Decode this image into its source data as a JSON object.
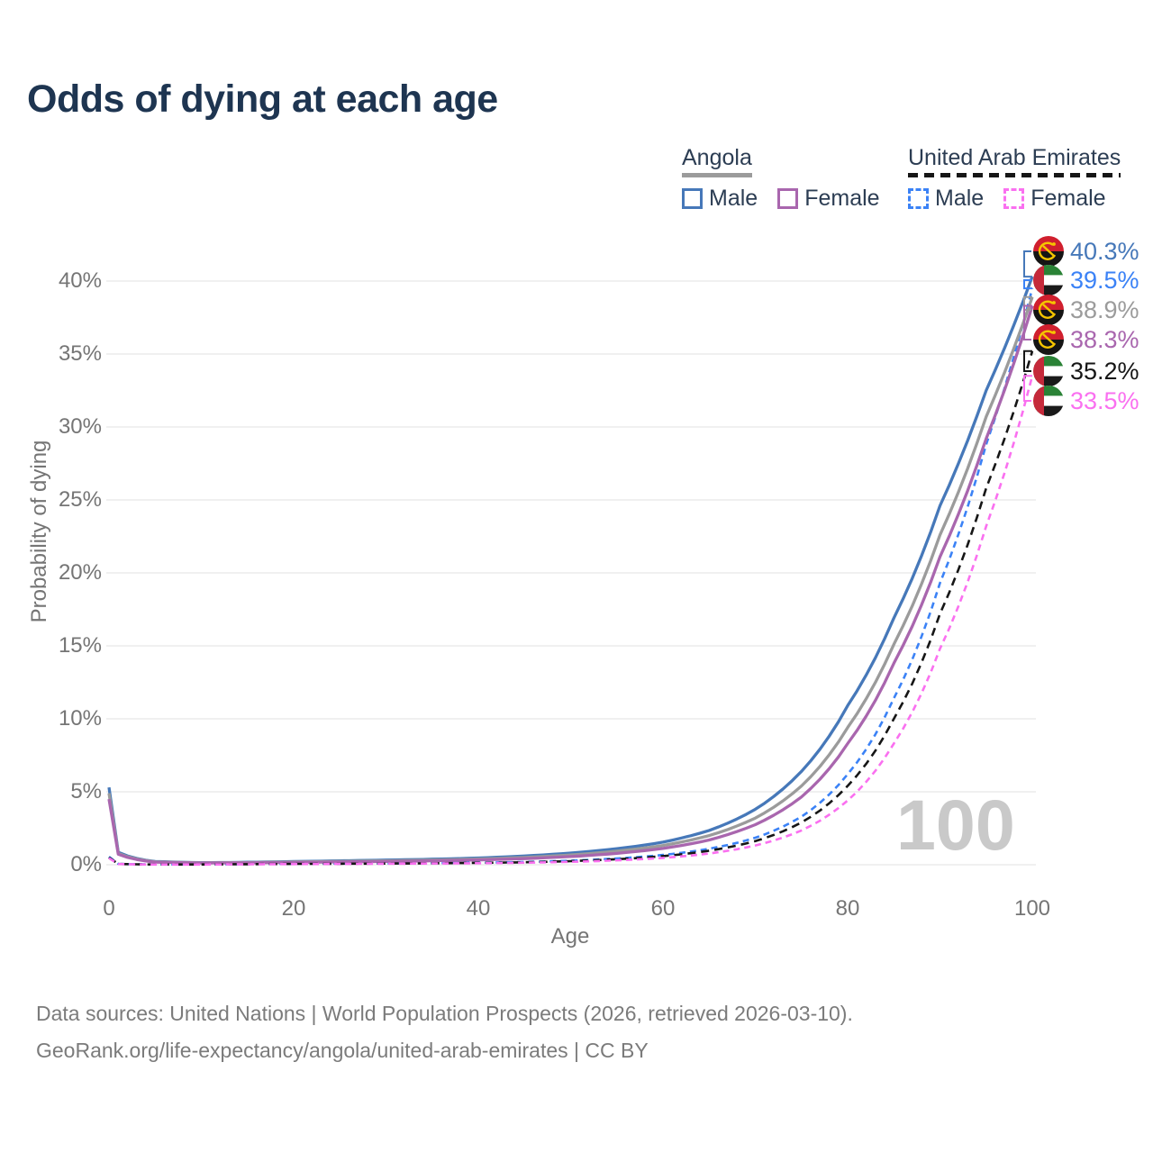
{
  "title": "Odds of dying at each age",
  "watermark": "100",
  "footer": {
    "line1": "Data sources: United Nations | World Population Prospects (2026, retrieved 2026-03-10).",
    "line2": "GeoRank.org/life-expectancy/angola/united-arab-emirates | CC BY"
  },
  "legend": {
    "groups": [
      {
        "country": "Angola",
        "underline_style": "solid",
        "underline_color": "#9b9b9b",
        "items": [
          {
            "label": "Male",
            "color": "#4678b9",
            "dashed": false
          },
          {
            "label": "Female",
            "color": "#a966ae",
            "dashed": false
          }
        ]
      },
      {
        "country": "United Arab Emirates",
        "underline_style": "dashed",
        "underline_color": "#161616",
        "items": [
          {
            "label": "Male",
            "color": "#3b82f6",
            "dashed": true
          },
          {
            "label": "Female",
            "color": "#fa70f0",
            "dashed": true
          }
        ]
      }
    ]
  },
  "chart_data": {
    "type": "line",
    "title": "Odds of dying at each age",
    "xlabel": "Age",
    "ylabel": "Probability of dying",
    "xlim": [
      0,
      100
    ],
    "ylim_percent": [
      0,
      43
    ],
    "x_ticks": [
      0,
      20,
      40,
      60,
      80,
      100
    ],
    "y_ticks_percent": [
      0,
      5,
      10,
      15,
      20,
      25,
      30,
      35,
      40
    ],
    "grid": "horizontal",
    "legend_position": "top-right",
    "ages": [
      0,
      1,
      5,
      10,
      15,
      20,
      25,
      30,
      35,
      40,
      45,
      50,
      55,
      60,
      65,
      70,
      75,
      80,
      85,
      90,
      95,
      100
    ],
    "series": [
      {
        "name": "Angola Male",
        "country": "Angola",
        "sex": "Male",
        "flag": "angola",
        "color": "#4678b9",
        "line": "solid",
        "end_label": "40.3%",
        "values_percent": [
          5.3,
          0.85,
          0.22,
          0.14,
          0.17,
          0.22,
          0.27,
          0.32,
          0.38,
          0.46,
          0.6,
          0.8,
          1.1,
          1.55,
          2.35,
          3.8,
          6.4,
          10.9,
          16.9,
          24.6,
          32.5,
          40.3
        ]
      },
      {
        "name": "United Arab Emirates Male",
        "country": "United Arab Emirates",
        "sex": "Male",
        "flag": "uae",
        "color": "#3b82f6",
        "line": "dashed",
        "end_label": "39.5%",
        "values_percent": [
          0.55,
          0.06,
          0.02,
          0.02,
          0.045,
          0.07,
          0.08,
          0.09,
          0.11,
          0.14,
          0.19,
          0.28,
          0.43,
          0.67,
          1.1,
          1.85,
          3.3,
          6.2,
          11.4,
          19.3,
          28.8,
          39.5
        ]
      },
      {
        "name": "Angola Both sexes",
        "country": "Angola",
        "sex": "Both",
        "flag": "angola",
        "color": "#9b9b9b",
        "line": "solid",
        "end_label": "38.9%",
        "values_percent": [
          4.9,
          0.78,
          0.2,
          0.13,
          0.15,
          0.19,
          0.23,
          0.27,
          0.32,
          0.39,
          0.5,
          0.67,
          0.93,
          1.32,
          2.0,
          3.2,
          5.4,
          9.4,
          15.1,
          22.6,
          30.7,
          38.9
        ]
      },
      {
        "name": "Angola Female",
        "country": "Angola",
        "sex": "Female",
        "flag": "angola",
        "color": "#a966ae",
        "line": "solid",
        "end_label": "38.3%",
        "values_percent": [
          4.5,
          0.72,
          0.18,
          0.12,
          0.13,
          0.16,
          0.19,
          0.22,
          0.27,
          0.33,
          0.42,
          0.56,
          0.78,
          1.12,
          1.7,
          2.75,
          4.65,
          8.3,
          13.8,
          21.1,
          29.2,
          38.3
        ]
      },
      {
        "name": "United Arab Emirates Both sexes",
        "country": "United Arab Emirates",
        "sex": "Both",
        "flag": "uae",
        "color": "#161616",
        "line": "dashed",
        "end_label": "35.2%",
        "values_percent": [
          0.5,
          0.055,
          0.018,
          0.018,
          0.04,
          0.06,
          0.07,
          0.08,
          0.1,
          0.13,
          0.17,
          0.25,
          0.38,
          0.59,
          0.96,
          1.62,
          2.9,
          5.4,
          10.0,
          17.2,
          25.8,
          35.2
        ]
      },
      {
        "name": "United Arab Emirates Female",
        "country": "United Arab Emirates",
        "sex": "Female",
        "flag": "uae",
        "color": "#fa70f0",
        "line": "dashed",
        "end_label": "33.5%",
        "values_percent": [
          0.45,
          0.05,
          0.015,
          0.015,
          0.03,
          0.045,
          0.055,
          0.07,
          0.085,
          0.105,
          0.14,
          0.2,
          0.3,
          0.47,
          0.77,
          1.32,
          2.35,
          4.4,
          8.3,
          14.8,
          23.2,
          33.5
        ]
      }
    ]
  }
}
